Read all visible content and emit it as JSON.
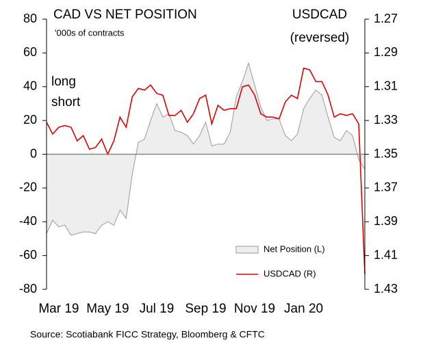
{
  "chart_data": {
    "type": "area_line",
    "title": "CAD VS NET POSITION",
    "subtitle": "'000s of contracts",
    "y2_label": [
      "USDCAD",
      "(reversed)"
    ],
    "annotations": [
      "long",
      "short"
    ],
    "source": "Source: Scotiabank FICC  Strategy, Bloomberg & CFTC",
    "categories": [
      null,
      null,
      "Mar 19",
      null,
      null,
      null,
      null,
      null,
      null,
      null,
      "May 19",
      null,
      null,
      null,
      null,
      null,
      null,
      null,
      "Jul 19",
      null,
      null,
      null,
      null,
      null,
      null,
      null,
      "Sep 19",
      null,
      null,
      null,
      null,
      null,
      null,
      null,
      "Nov 19",
      null,
      null,
      null,
      null,
      null,
      null,
      null,
      "Jan 20",
      null,
      null,
      null,
      null,
      null,
      null,
      null,
      null,
      null,
      null
    ],
    "series": [
      {
        "name": "Net Position (L)",
        "color": "#eeeeee",
        "stroke": "#999999",
        "axis": "y",
        "values": [
          -47,
          -39,
          -43,
          -42,
          -48,
          -47,
          -46,
          -46,
          -47,
          -42,
          -40,
          -42,
          -33,
          -38,
          -12,
          7,
          9,
          20,
          30,
          22,
          24,
          14,
          13,
          11,
          6,
          11,
          19,
          5,
          6,
          6,
          13,
          34,
          43,
          54,
          41,
          28,
          20,
          21,
          21,
          11,
          8,
          12,
          27,
          33,
          38,
          35,
          22,
          10,
          8,
          14,
          11,
          -3,
          -9
        ]
      },
      {
        "name": "USDCAD (R)",
        "color": "#e00000",
        "axis": "y2",
        "values": [
          1.331,
          1.338,
          1.334,
          1.333,
          1.334,
          1.342,
          1.339,
          1.347,
          1.346,
          1.341,
          1.35,
          1.342,
          1.328,
          1.334,
          1.316,
          1.311,
          1.312,
          1.309,
          1.314,
          1.315,
          1.327,
          1.327,
          1.324,
          1.331,
          1.326,
          1.317,
          1.315,
          1.332,
          1.321,
          1.324,
          1.323,
          1.323,
          1.31,
          1.309,
          1.315,
          1.326,
          1.328,
          1.328,
          1.329,
          1.319,
          1.315,
          1.317,
          1.299,
          1.3,
          1.307,
          1.307,
          1.315,
          1.328,
          1.326,
          1.327,
          1.326,
          1.332,
          1.421
        ]
      }
    ],
    "ylim": [
      -80,
      80
    ],
    "yticks": [
      -80,
      -60,
      -40,
      -20,
      0,
      20,
      40,
      60,
      80
    ],
    "y2lim": [
      1.27,
      1.43
    ],
    "y2ticks": [
      1.27,
      1.29,
      1.31,
      1.33,
      1.35,
      1.37,
      1.39,
      1.41,
      1.43
    ],
    "y2_reversed": true,
    "legend": "lower right"
  }
}
